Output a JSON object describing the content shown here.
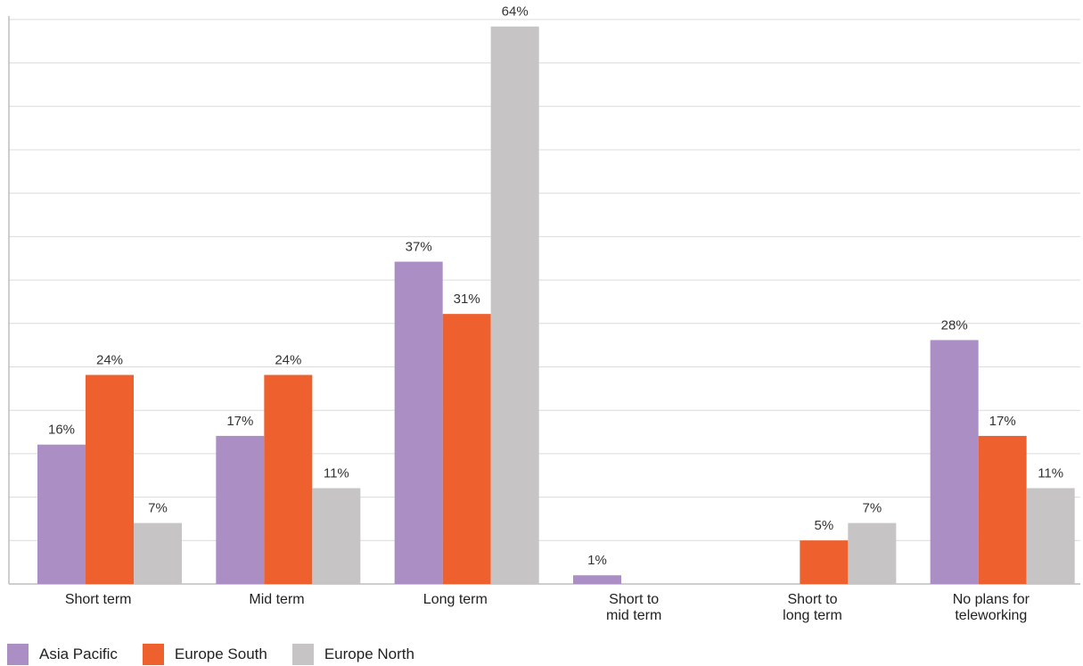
{
  "chart_data": {
    "type": "bar",
    "categories": [
      [
        "Short term"
      ],
      [
        "Mid term"
      ],
      [
        "Long term"
      ],
      [
        "Short to",
        "mid term"
      ],
      [
        "Short to",
        "long term"
      ],
      [
        "No plans for",
        "teleworking"
      ]
    ],
    "series": [
      {
        "name": "Asia Pacific",
        "color": "#ab8ec3",
        "values": [
          16,
          17,
          37,
          1,
          null,
          28
        ],
        "labels": [
          "16%",
          "17%",
          "37%",
          "1%",
          "",
          "28%"
        ]
      },
      {
        "name": "Europe South",
        "color": "#ee612f",
        "values": [
          24,
          24,
          31,
          null,
          5,
          17
        ],
        "labels": [
          "24%",
          "24%",
          "31%",
          "",
          "5%",
          "17%"
        ]
      },
      {
        "name": "Europe North",
        "color": "#c6c4c4",
        "values": [
          7,
          11,
          64,
          null,
          7,
          11
        ],
        "labels": [
          "7%",
          "11%",
          "64%",
          "",
          "7%",
          "11%"
        ]
      }
    ],
    "ylim": [
      0,
      65
    ],
    "grid": true,
    "legend_position": "bottom-left"
  }
}
